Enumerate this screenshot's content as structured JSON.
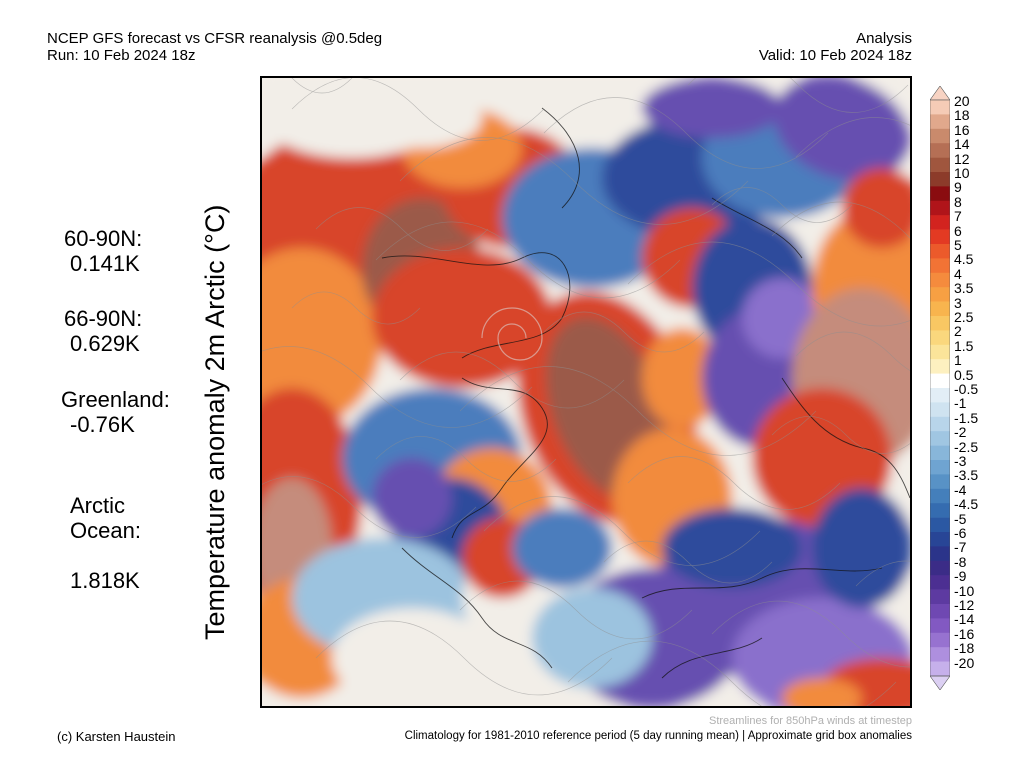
{
  "header": {
    "left_line1": "NCEP GFS forecast vs CFSR reanalysis @0.5deg",
    "left_line2": "Run: 10 Feb 2024 18z",
    "right_line1": "Analysis",
    "right_line2": "Valid: 10 Feb 2024 18z"
  },
  "vertical_label": "Temperature anomaly 2m Arctic (°C)",
  "stats": [
    {
      "label": "60-90N:",
      "value": "0.141K"
    },
    {
      "label": "66-90N:",
      "value": "0.629K"
    },
    {
      "label": "Greenland:",
      "value": "-0.76K"
    },
    {
      "label": "Arctic\nOcean:",
      "value": "1.818K"
    }
  ],
  "colorbar": {
    "labels": [
      "20",
      "18",
      "16",
      "14",
      "12",
      "10",
      "9",
      "8",
      "7",
      "6",
      "5",
      "4.5",
      "4",
      "3.5",
      "3",
      "2.5",
      "2",
      "1.5",
      "1",
      "0.5",
      "-0.5",
      "-1",
      "-1.5",
      "-2",
      "-2.5",
      "-3",
      "-3.5",
      "-4",
      "-4.5",
      "-5",
      "-6",
      "-7",
      "-8",
      "-9",
      "-10",
      "-12",
      "-14",
      "-16",
      "-18",
      "-20"
    ],
    "colors": [
      "#f5cbb6",
      "#e1a88c",
      "#c98a6c",
      "#b56f55",
      "#a0563e",
      "#8c3b2a",
      "#8a0c10",
      "#b0141a",
      "#d2231f",
      "#e33a23",
      "#ec5a2b",
      "#f27335",
      "#f58b3d",
      "#f7a043",
      "#f8b44e",
      "#f9c763",
      "#fad77d",
      "#fbe49a",
      "#fdf0c0",
      "#ffffff",
      "#e2eef6",
      "#cfe3f0",
      "#b8d5ea",
      "#a0c6e2",
      "#88b6da",
      "#6fa4d1",
      "#5892c6",
      "#447fbb",
      "#356cb0",
      "#2b58a3",
      "#284596",
      "#2b348a",
      "#3b2c87",
      "#4c2f92",
      "#5d3aa1",
      "#6f48b2",
      "#8259c2",
      "#9772d0",
      "#ae8fde",
      "#c6b0eb"
    ],
    "low_color": "#dcd0f3",
    "high_color": "#f7d3c3"
  },
  "map": {
    "colors": {
      "deep_red": "#a83220",
      "red": "#d8442a",
      "orange": "#f28b3e",
      "brown": "#9b5a4a",
      "pink_brown": "#c58c7c",
      "light": "#f2eee8",
      "light_blue": "#9cc3df",
      "blue": "#4b7dbd",
      "dark_blue": "#2d4b9c",
      "purple": "#6650b0",
      "violet": "#8a70cc"
    }
  },
  "footer": {
    "credit": "(c) Karsten Haustein",
    "note": "Streamlines for 850hPa winds at timestep",
    "climatology": "Climatology for 1981-2010 reference period (5 day running mean) | Approximate grid box anomalies"
  }
}
